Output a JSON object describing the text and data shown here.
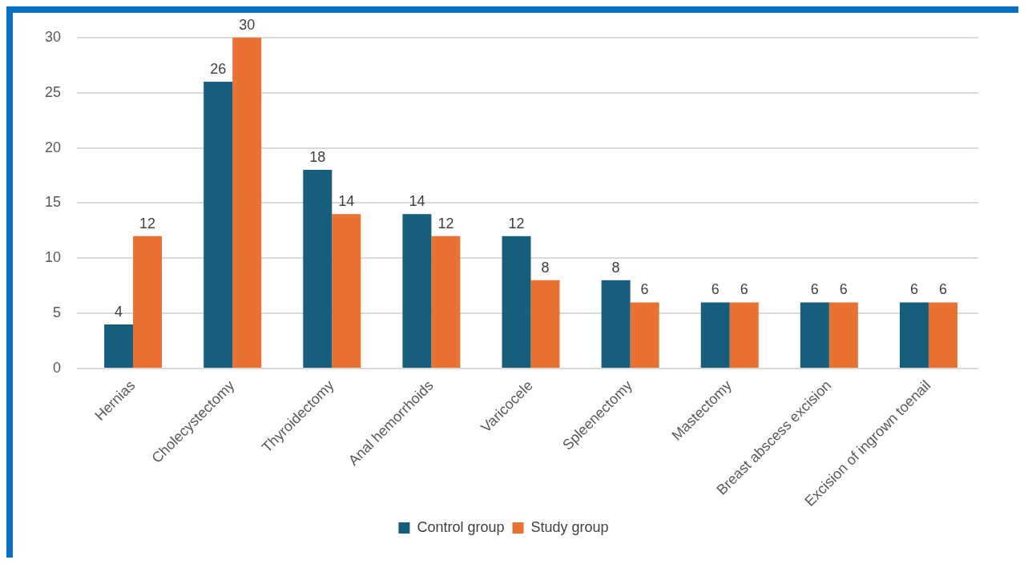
{
  "chart_data": {
    "type": "bar",
    "categories": [
      "Hernias",
      "Cholecystectomy",
      "Thyroidectomy",
      "Anal hemorrhoids",
      "Varicocele",
      "Spleenectomy",
      "Mastectomy",
      "Breast abscess excision",
      "Excision of ingrown toenail"
    ],
    "series": [
      {
        "name": "Control group",
        "color": "#165e7c",
        "values": [
          4,
          26,
          18,
          14,
          12,
          8,
          6,
          6,
          6
        ]
      },
      {
        "name": "Study group",
        "color": "#e97132",
        "values": [
          12,
          30,
          14,
          12,
          8,
          6,
          6,
          6,
          6
        ]
      }
    ],
    "ylim": [
      0,
      30
    ],
    "yticks": [
      0,
      5,
      10,
      15,
      20,
      25,
      30
    ],
    "grid": "y",
    "legend": "bottom",
    "data_labels": true
  }
}
